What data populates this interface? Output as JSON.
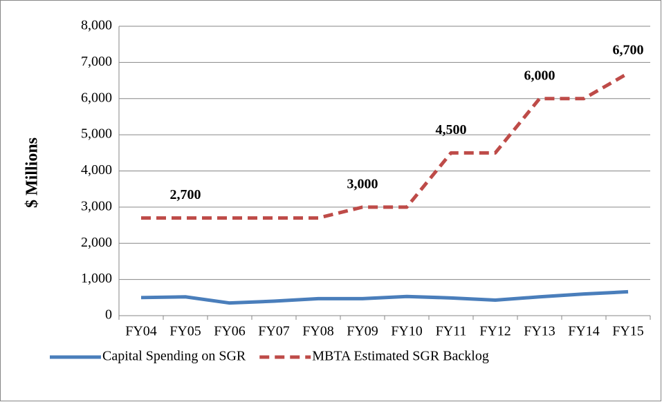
{
  "chart_data": {
    "type": "line",
    "y_label": "$ Millions",
    "categories": [
      "FY04",
      "FY05",
      "FY06",
      "FY07",
      "FY08",
      "FY09",
      "FY10",
      "FY11",
      "FY12",
      "FY13",
      "FY14",
      "FY15"
    ],
    "series": [
      {
        "name": "Capital Spending on SGR",
        "color": "#4a7ebb",
        "dashed": false,
        "values": [
          500,
          520,
          350,
          400,
          470,
          470,
          530,
          490,
          430,
          520,
          600,
          660
        ]
      },
      {
        "name": "MBTA Estimated SGR Backlog",
        "color": "#be4b48",
        "dashed": true,
        "values": [
          2700,
          2700,
          2700,
          2700,
          2700,
          3000,
          3000,
          4500,
          4500,
          6000,
          6000,
          6700
        ],
        "value_labels": [
          null,
          "2,700",
          null,
          null,
          null,
          "3,000",
          null,
          "4,500",
          null,
          "6,000",
          null,
          "6,700"
        ]
      }
    ],
    "ylim": [
      0,
      8000
    ],
    "yticks": [
      0,
      {
        "value": 1000,
        "label": "1,000"
      },
      {
        "value": 2000,
        "label": "2,000"
      },
      {
        "value": 3000,
        "label": "3,000"
      },
      {
        "value": 4000,
        "label": "4,000"
      },
      {
        "value": 5000,
        "label": "5,000"
      },
      {
        "value": 6000,
        "label": "6,000"
      },
      {
        "value": 7000,
        "label": "7,000"
      },
      {
        "value": 8000,
        "label": "8,000"
      }
    ],
    "grid": true,
    "legend": "bottom"
  }
}
